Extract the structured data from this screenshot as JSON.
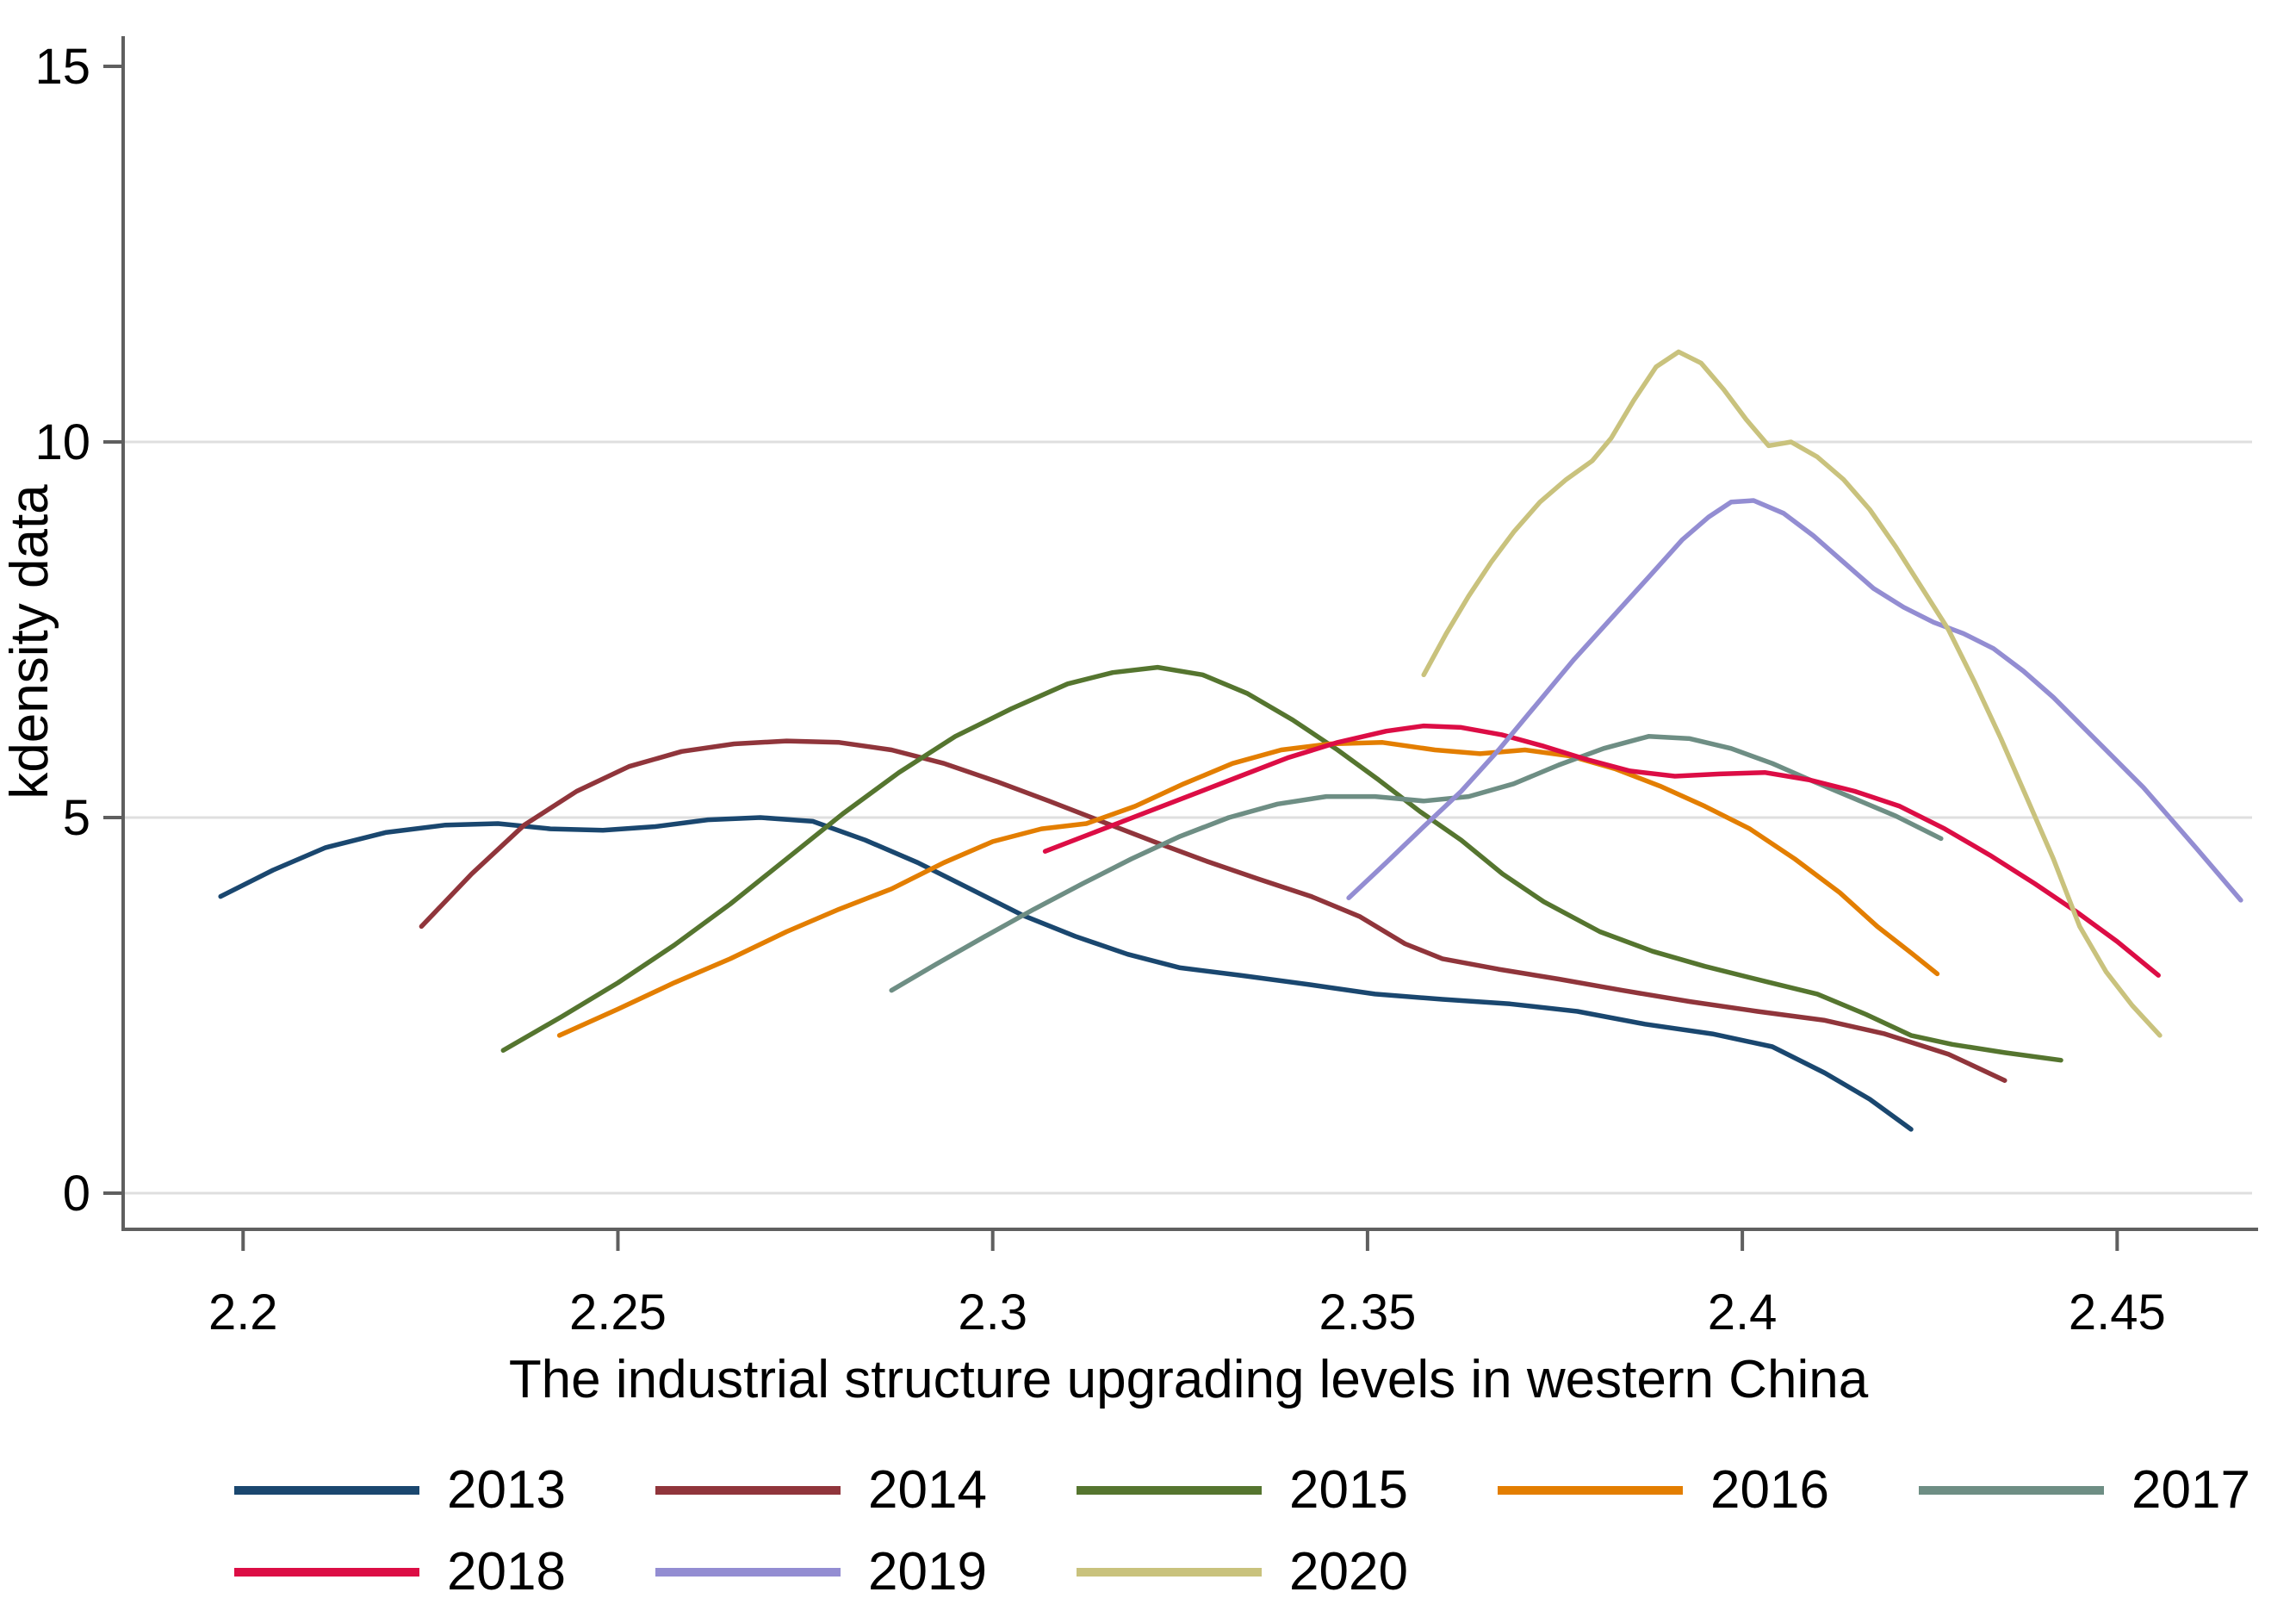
{
  "figure": {
    "type": "stata-kdensity-figure",
    "background": "#ffffff",
    "axis_color": "#5f5f5f",
    "grid_color": "#dfdfdf",
    "text_color": "#000000"
  },
  "chart_data": {
    "type": "line",
    "title": "",
    "xlabel": "The industrial structure upgrading levels in western China",
    "ylabel": "kdensity data",
    "xlim": [
      2.184,
      2.468
    ],
    "ylim": [
      0,
      15
    ],
    "grid": "horizontal-only",
    "legend_position": "bottom-two-rows",
    "x_ticks": [
      {
        "v": 2.2,
        "label": "2.2"
      },
      {
        "v": 2.25,
        "label": "2.25"
      },
      {
        "v": 2.3,
        "label": "2.3"
      },
      {
        "v": 2.35,
        "label": "2.35"
      },
      {
        "v": 2.4,
        "label": "2.4"
      },
      {
        "v": 2.45,
        "label": "2.45"
      }
    ],
    "y_ticks": [
      {
        "v": 0,
        "label": "0",
        "grid": true
      },
      {
        "v": 5,
        "label": "5",
        "grid": true
      },
      {
        "v": 10,
        "label": "10",
        "grid": true
      },
      {
        "v": 15,
        "label": "15",
        "grid": false
      }
    ],
    "series": [
      {
        "name": "2013",
        "color": "#1a476f",
        "points": [
          [
            2.197,
            3.95
          ],
          [
            2.204,
            4.3
          ],
          [
            2.211,
            4.6
          ],
          [
            2.219,
            4.8
          ],
          [
            2.227,
            4.9
          ],
          [
            2.234,
            4.92
          ],
          [
            2.241,
            4.85
          ],
          [
            2.248,
            4.83
          ],
          [
            2.255,
            4.88
          ],
          [
            2.262,
            4.97
          ],
          [
            2.269,
            5.0
          ],
          [
            2.276,
            4.95
          ],
          [
            2.283,
            4.7
          ],
          [
            2.29,
            4.4
          ],
          [
            2.297,
            4.05
          ],
          [
            2.304,
            3.7
          ],
          [
            2.311,
            3.42
          ],
          [
            2.318,
            3.18
          ],
          [
            2.325,
            3.0
          ],
          [
            2.333,
            2.9
          ],
          [
            2.342,
            2.78
          ],
          [
            2.351,
            2.65
          ],
          [
            2.36,
            2.58
          ],
          [
            2.369,
            2.52
          ],
          [
            2.378,
            2.42
          ],
          [
            2.387,
            2.25
          ],
          [
            2.396,
            2.12
          ],
          [
            2.404,
            1.95
          ],
          [
            2.411,
            1.6
          ],
          [
            2.417,
            1.25
          ],
          [
            2.4225,
            0.85
          ]
        ]
      },
      {
        "name": "2014",
        "color": "#90353b",
        "points": [
          [
            2.2238,
            3.55
          ],
          [
            2.2305,
            4.25
          ],
          [
            2.2375,
            4.9
          ],
          [
            2.2445,
            5.35
          ],
          [
            2.2515,
            5.68
          ],
          [
            2.2585,
            5.88
          ],
          [
            2.2655,
            5.98
          ],
          [
            2.2725,
            6.02
          ],
          [
            2.2795,
            6.0
          ],
          [
            2.2865,
            5.9
          ],
          [
            2.2935,
            5.72
          ],
          [
            2.3005,
            5.48
          ],
          [
            2.3075,
            5.22
          ],
          [
            2.3145,
            4.95
          ],
          [
            2.3215,
            4.68
          ],
          [
            2.3285,
            4.42
          ],
          [
            2.3355,
            4.18
          ],
          [
            2.3425,
            3.95
          ],
          [
            2.349,
            3.68
          ],
          [
            2.355,
            3.32
          ],
          [
            2.36,
            3.12
          ],
          [
            2.3675,
            2.98
          ],
          [
            2.3755,
            2.85
          ],
          [
            2.384,
            2.7
          ],
          [
            2.393,
            2.55
          ],
          [
            2.402,
            2.42
          ],
          [
            2.411,
            2.3
          ],
          [
            2.419,
            2.12
          ],
          [
            2.4275,
            1.85
          ],
          [
            2.435,
            1.5
          ]
        ]
      },
      {
        "name": "2015",
        "color": "#55752f",
        "points": [
          [
            2.2347,
            1.9
          ],
          [
            2.2425,
            2.35
          ],
          [
            2.25,
            2.8
          ],
          [
            2.2575,
            3.3
          ],
          [
            2.265,
            3.85
          ],
          [
            2.2725,
            4.45
          ],
          [
            2.28,
            5.05
          ],
          [
            2.2875,
            5.6
          ],
          [
            2.295,
            6.08
          ],
          [
            2.3025,
            6.45
          ],
          [
            2.31,
            6.78
          ],
          [
            2.316,
            6.93
          ],
          [
            2.322,
            7.0
          ],
          [
            2.328,
            6.9
          ],
          [
            2.334,
            6.65
          ],
          [
            2.34,
            6.3
          ],
          [
            2.346,
            5.9
          ],
          [
            2.3515,
            5.5
          ],
          [
            2.357,
            5.08
          ],
          [
            2.3625,
            4.7
          ],
          [
            2.368,
            4.25
          ],
          [
            2.3735,
            3.88
          ],
          [
            2.381,
            3.48
          ],
          [
            2.388,
            3.22
          ],
          [
            2.395,
            3.02
          ],
          [
            2.403,
            2.82
          ],
          [
            2.41,
            2.65
          ],
          [
            2.4165,
            2.38
          ],
          [
            2.4225,
            2.1
          ],
          [
            2.428,
            1.98
          ],
          [
            2.435,
            1.87
          ],
          [
            2.4425,
            1.77
          ]
        ]
      },
      {
        "name": "2016",
        "color": "#e37e00",
        "points": [
          [
            2.2422,
            2.1
          ],
          [
            2.25,
            2.45
          ],
          [
            2.2575,
            2.8
          ],
          [
            2.265,
            3.12
          ],
          [
            2.2725,
            3.48
          ],
          [
            2.2795,
            3.78
          ],
          [
            2.2865,
            4.05
          ],
          [
            2.2935,
            4.4
          ],
          [
            2.3,
            4.68
          ],
          [
            2.3065,
            4.85
          ],
          [
            2.3125,
            4.92
          ],
          [
            2.319,
            5.15
          ],
          [
            2.3255,
            5.45
          ],
          [
            2.332,
            5.72
          ],
          [
            2.3385,
            5.9
          ],
          [
            2.345,
            5.98
          ],
          [
            2.352,
            6.0
          ],
          [
            2.359,
            5.9
          ],
          [
            2.365,
            5.85
          ],
          [
            2.371,
            5.9
          ],
          [
            2.377,
            5.82
          ],
          [
            2.383,
            5.65
          ],
          [
            2.389,
            5.42
          ],
          [
            2.395,
            5.15
          ],
          [
            2.401,
            4.85
          ],
          [
            2.407,
            4.45
          ],
          [
            2.413,
            4.0
          ],
          [
            2.418,
            3.55
          ],
          [
            2.4225,
            3.2
          ],
          [
            2.426,
            2.92
          ]
        ]
      },
      {
        "name": "2017",
        "color": "#6e8e84",
        "points": [
          [
            2.2865,
            2.7
          ],
          [
            2.2925,
            3.05
          ],
          [
            2.299,
            3.42
          ],
          [
            2.3055,
            3.78
          ],
          [
            2.312,
            4.12
          ],
          [
            2.3185,
            4.45
          ],
          [
            2.325,
            4.75
          ],
          [
            2.3315,
            5.0
          ],
          [
            2.338,
            5.18
          ],
          [
            2.3445,
            5.28
          ],
          [
            2.351,
            5.28
          ],
          [
            2.3575,
            5.22
          ],
          [
            2.3635,
            5.28
          ],
          [
            2.3695,
            5.45
          ],
          [
            2.3755,
            5.7
          ],
          [
            2.3815,
            5.92
          ],
          [
            2.3875,
            6.08
          ],
          [
            2.393,
            6.05
          ],
          [
            2.3985,
            5.92
          ],
          [
            2.404,
            5.72
          ],
          [
            2.4095,
            5.48
          ],
          [
            2.415,
            5.25
          ],
          [
            2.4205,
            5.02
          ],
          [
            2.4265,
            4.72
          ]
        ]
      },
      {
        "name": "2018",
        "color": "#dc0d45",
        "points": [
          [
            2.307,
            4.55
          ],
          [
            2.3135,
            4.8
          ],
          [
            2.32,
            5.05
          ],
          [
            2.3265,
            5.3
          ],
          [
            2.333,
            5.55
          ],
          [
            2.3395,
            5.8
          ],
          [
            2.346,
            6.0
          ],
          [
            2.3525,
            6.15
          ],
          [
            2.3575,
            6.22
          ],
          [
            2.3625,
            6.2
          ],
          [
            2.368,
            6.1
          ],
          [
            2.3735,
            5.95
          ],
          [
            2.379,
            5.78
          ],
          [
            2.385,
            5.62
          ],
          [
            2.391,
            5.55
          ],
          [
            2.397,
            5.58
          ],
          [
            2.403,
            5.6
          ],
          [
            2.409,
            5.5
          ],
          [
            2.415,
            5.35
          ],
          [
            2.421,
            5.15
          ],
          [
            2.427,
            4.85
          ],
          [
            2.433,
            4.5
          ],
          [
            2.439,
            4.12
          ],
          [
            2.4445,
            3.75
          ],
          [
            2.45,
            3.35
          ],
          [
            2.4555,
            2.9
          ]
        ]
      },
      {
        "name": "2019",
        "color": "#938dd2",
        "points": [
          [
            2.3475,
            3.93
          ],
          [
            2.3525,
            4.4
          ],
          [
            2.3575,
            4.88
          ],
          [
            2.3625,
            5.35
          ],
          [
            2.3675,
            5.9
          ],
          [
            2.3725,
            6.5
          ],
          [
            2.3775,
            7.1
          ],
          [
            2.3825,
            7.65
          ],
          [
            2.3875,
            8.2
          ],
          [
            2.392,
            8.7
          ],
          [
            2.3955,
            9.0
          ],
          [
            2.3985,
            9.2
          ],
          [
            2.4015,
            9.22
          ],
          [
            2.4055,
            9.05
          ],
          [
            2.4095,
            8.75
          ],
          [
            2.4135,
            8.4
          ],
          [
            2.4175,
            8.05
          ],
          [
            2.4215,
            7.8
          ],
          [
            2.4255,
            7.6
          ],
          [
            2.4295,
            7.45
          ],
          [
            2.4335,
            7.25
          ],
          [
            2.4375,
            6.95
          ],
          [
            2.4415,
            6.6
          ],
          [
            2.4455,
            6.2
          ],
          [
            2.4495,
            5.8
          ],
          [
            2.4535,
            5.4
          ],
          [
            2.457,
            5.0
          ],
          [
            2.4605,
            4.6
          ],
          [
            2.4635,
            4.25
          ],
          [
            2.4665,
            3.9
          ]
        ]
      },
      {
        "name": "2020",
        "color": "#c9c27d",
        "points": [
          [
            2.3575,
            6.9
          ],
          [
            2.3605,
            7.45
          ],
          [
            2.3635,
            7.95
          ],
          [
            2.3665,
            8.4
          ],
          [
            2.3695,
            8.8
          ],
          [
            2.373,
            9.2
          ],
          [
            2.3765,
            9.5
          ],
          [
            2.38,
            9.75
          ],
          [
            2.3825,
            10.05
          ],
          [
            2.3855,
            10.55
          ],
          [
            2.3885,
            11.0
          ],
          [
            2.3915,
            11.2
          ],
          [
            2.3945,
            11.05
          ],
          [
            2.3975,
            10.7
          ],
          [
            2.4005,
            10.3
          ],
          [
            2.4035,
            9.95
          ],
          [
            2.4065,
            10.0
          ],
          [
            2.41,
            9.8
          ],
          [
            2.4135,
            9.5
          ],
          [
            2.417,
            9.1
          ],
          [
            2.4205,
            8.6
          ],
          [
            2.424,
            8.05
          ],
          [
            2.4275,
            7.5
          ],
          [
            2.431,
            6.8
          ],
          [
            2.4345,
            6.05
          ],
          [
            2.438,
            5.25
          ],
          [
            2.4415,
            4.45
          ],
          [
            2.445,
            3.55
          ],
          [
            2.4485,
            2.95
          ],
          [
            2.452,
            2.5
          ],
          [
            2.4557,
            2.1
          ]
        ]
      }
    ]
  }
}
